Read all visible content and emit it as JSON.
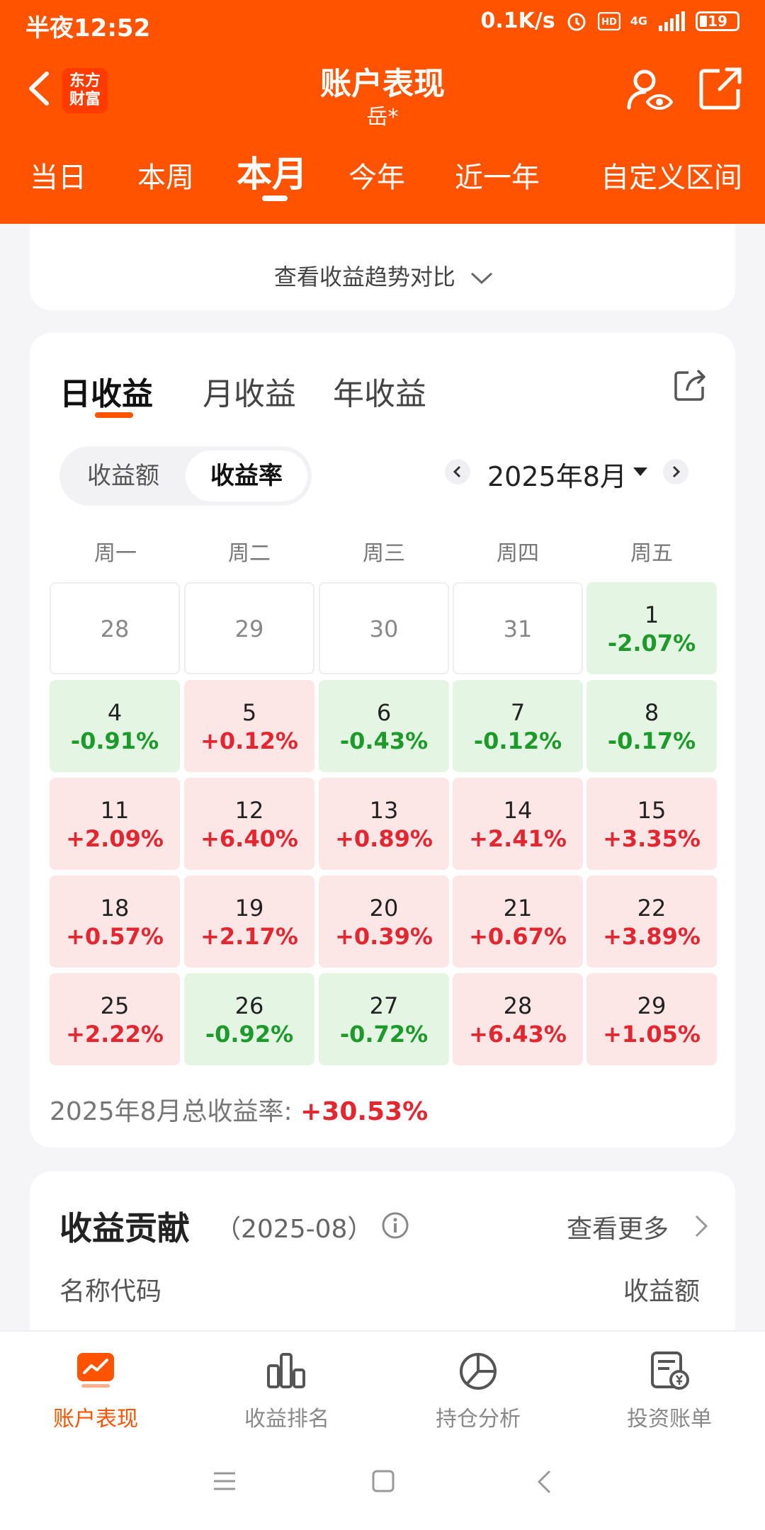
{
  "status": {
    "time": "半夜12:52",
    "speed": "0.1K/s",
    "network": "4G",
    "battery": "19"
  },
  "header": {
    "title": "账户表现",
    "subtitle": "岳*",
    "logo": "东方\n财富"
  },
  "period_tabs": [
    "当日",
    "本周",
    "本月",
    "今年",
    "近一年",
    "自定义区间"
  ],
  "active_period_index": 2,
  "trend_compare": {
    "label": "查看收益趋势对比"
  },
  "calendar": {
    "tabs": [
      "日收益",
      "月收益",
      "年收益"
    ],
    "segment": [
      "收益额",
      "收益率"
    ],
    "month_label": "2025年8月",
    "weekdays": [
      "周一",
      "周二",
      "周三",
      "周四",
      "周五"
    ],
    "cells": [
      {
        "day": "28",
        "rate": "",
        "type": "empty"
      },
      {
        "day": "29",
        "rate": "",
        "type": "empty"
      },
      {
        "day": "30",
        "rate": "",
        "type": "empty"
      },
      {
        "day": "31",
        "rate": "",
        "type": "empty"
      },
      {
        "day": "1",
        "rate": "-2.07%",
        "type": "neg"
      },
      {
        "day": "4",
        "rate": "-0.91%",
        "type": "neg"
      },
      {
        "day": "5",
        "rate": "+0.12%",
        "type": "pos"
      },
      {
        "day": "6",
        "rate": "-0.43%",
        "type": "neg"
      },
      {
        "day": "7",
        "rate": "-0.12%",
        "type": "neg"
      },
      {
        "day": "8",
        "rate": "-0.17%",
        "type": "neg"
      },
      {
        "day": "11",
        "rate": "+2.09%",
        "type": "pos"
      },
      {
        "day": "12",
        "rate": "+6.40%",
        "type": "pos"
      },
      {
        "day": "13",
        "rate": "+0.89%",
        "type": "pos"
      },
      {
        "day": "14",
        "rate": "+2.41%",
        "type": "pos"
      },
      {
        "day": "15",
        "rate": "+3.35%",
        "type": "pos"
      },
      {
        "day": "18",
        "rate": "+0.57%",
        "type": "pos"
      },
      {
        "day": "19",
        "rate": "+2.17%",
        "type": "pos"
      },
      {
        "day": "20",
        "rate": "+0.39%",
        "type": "pos"
      },
      {
        "day": "21",
        "rate": "+0.67%",
        "type": "pos"
      },
      {
        "day": "22",
        "rate": "+3.89%",
        "type": "pos"
      },
      {
        "day": "25",
        "rate": "+2.22%",
        "type": "pos"
      },
      {
        "day": "26",
        "rate": "-0.92%",
        "type": "neg"
      },
      {
        "day": "27",
        "rate": "-0.72%",
        "type": "neg"
      },
      {
        "day": "28",
        "rate": "+6.43%",
        "type": "pos"
      },
      {
        "day": "29",
        "rate": "+1.05%",
        "type": "pos"
      }
    ],
    "total_label": "2025年8月总收益率: ",
    "total_value": "+30.53%"
  },
  "contribution": {
    "title": "收益贡献",
    "period": "（2025-08）",
    "more": "查看更多",
    "col_name": "名称代码",
    "col_value": "收益额"
  },
  "bottom_nav": [
    "账户表现",
    "收益排名",
    "持仓分析",
    "投资账单"
  ],
  "colors": {
    "brand": "#ff5300",
    "positive": "#e3262f",
    "negative": "#1c9a2a"
  }
}
